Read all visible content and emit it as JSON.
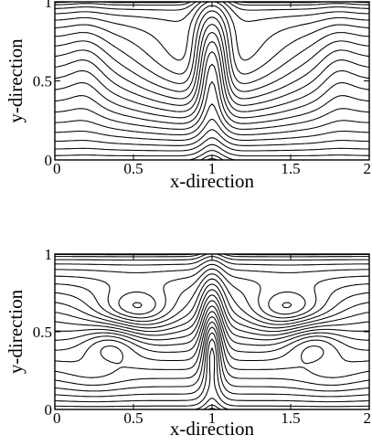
{
  "chart_data": [
    {
      "type": "contour",
      "title": "",
      "xlabel": "x-direction",
      "ylabel": "y-direction",
      "xlim": [
        0,
        2
      ],
      "ylim": [
        0,
        1
      ],
      "xticks": [
        0,
        0.5,
        1,
        1.5,
        2
      ],
      "xtick_labels": [
        "0",
        "0.5",
        "1",
        "1.5",
        "2"
      ],
      "yticks": [
        0,
        0.5,
        1
      ],
      "ytick_labels": [
        "0",
        "0.5",
        "1"
      ],
      "grid": false,
      "legend": "none",
      "line_color": "#000000",
      "contour_levels": 22,
      "symmetry": "mirror about x = 1",
      "pattern": "two S-shaped side lobes with a central downward tongue at x = 1 reaching to about y = 0.28; lines crowded near y = 0 and y = 1"
    },
    {
      "type": "contour",
      "title": "",
      "xlabel": "x-direction",
      "ylabel": "y-direction",
      "xlim": [
        0,
        2
      ],
      "ylim": [
        0,
        1
      ],
      "xticks": [
        0,
        0.5,
        1,
        1.5,
        2
      ],
      "xtick_labels": [
        "0",
        "0.5",
        "1",
        "1.5",
        "2"
      ],
      "yticks": [
        0,
        0.5,
        1
      ],
      "ytick_labels": [
        "0",
        "0.5",
        "1"
      ],
      "grid": false,
      "legend": "none",
      "line_color": "#000000",
      "contour_levels": 24,
      "symmetry": "mirror about x = 1",
      "pattern": "mushroom-shaped lobes centred near x = 0.5 and x = 1.5, y = 0.55; narrow central plume at x = 1 reaching to about y = 0.2; dense lines near y = 1 and y = 0"
    }
  ]
}
